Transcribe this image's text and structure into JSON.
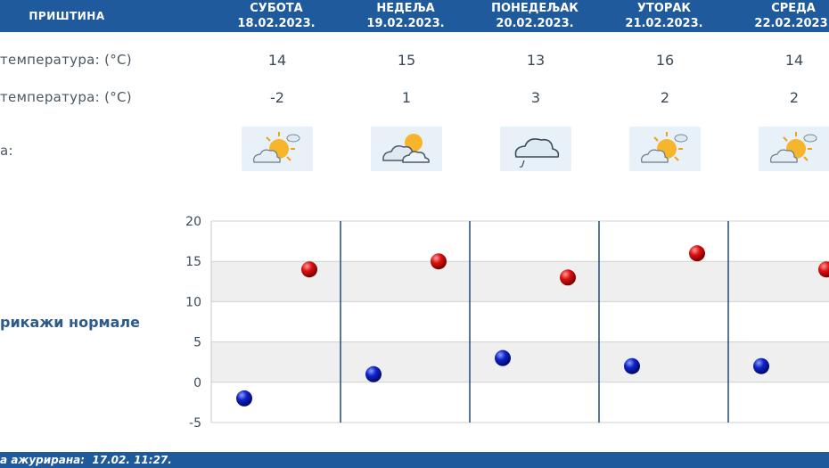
{
  "header": {
    "station": "ПРИШТИНА",
    "days": [
      {
        "name": "СУБОТА",
        "date": "18.02.2023."
      },
      {
        "name": "НЕДЕЉА",
        "date": "19.02.2023."
      },
      {
        "name": "ПОНЕДЕЉАК",
        "date": "20.02.2023."
      },
      {
        "name": "УТОРАК",
        "date": "21.02.2023."
      },
      {
        "name": "СРЕДА",
        "date": "22.02.2023."
      }
    ]
  },
  "rows": {
    "max_label": "температура: (°C)",
    "min_label": "температура: (°C)",
    "weather_label": "а:",
    "max_values": [
      "14",
      "15",
      "13",
      "16",
      "14"
    ],
    "min_values": [
      "-2",
      "1",
      "3",
      "2",
      "2"
    ],
    "weather_icons": [
      "partly-sunny-icon",
      "sun-cloud-icon",
      "rain-cloud-icon",
      "partly-sunny-icon",
      "partly-sunny-icon"
    ]
  },
  "normals_link": "рикажи нормале",
  "footer": {
    "label": "а ажурирана:",
    "value": "17.02. 11:27."
  },
  "colors": {
    "header_bg": "#1f5a9c",
    "max_marker": "#cc0000",
    "min_marker": "#0a1fb0",
    "divider": "#1f4a7c"
  },
  "chart_data": {
    "type": "scatter",
    "categories": [
      "СУБОТА",
      "НЕДЕЉА",
      "ПОНЕДЕЉАК",
      "УТОРАК",
      "СРЕДА"
    ],
    "series": [
      {
        "values": [
          14,
          15,
          13,
          16,
          14
        ],
        "color": "#cc0000"
      },
      {
        "values": [
          -2,
          1,
          3,
          2,
          2
        ],
        "color": "#0a1fb0"
      }
    ],
    "yticks": [
      "20",
      "15",
      "10",
      "5",
      "0",
      "-5"
    ],
    "ylim": [
      -5,
      20
    ],
    "grid": true
  }
}
